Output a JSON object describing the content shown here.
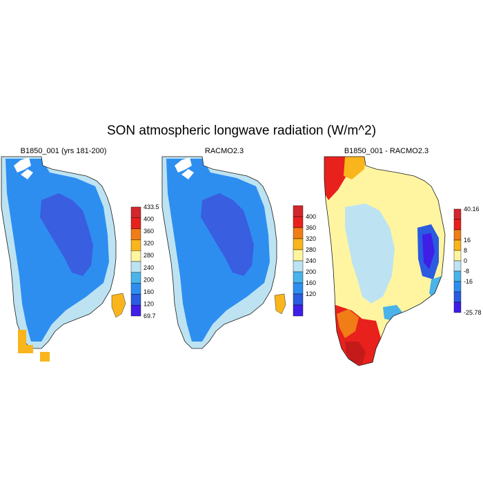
{
  "figure": {
    "title": "SON atmospheric longwave radiation (W/m^2)"
  },
  "chart_data": [
    {
      "type": "heatmap",
      "title": "B1850_001 (yrs 181-200)",
      "units": "W/m^2",
      "colorbar": {
        "labels": [
          "433.5",
          "400",
          "360",
          "320",
          "280",
          "240",
          "200",
          "160",
          "120",
          "69.7"
        ],
        "colors": [
          "#d2282d",
          "#e8211d",
          "#f07d16",
          "#f9b51b",
          "#fff5a0",
          "#bde3f2",
          "#4ab3ea",
          "#2d8ef0",
          "#2a5be0",
          "#3f1ee8"
        ]
      }
    },
    {
      "type": "heatmap",
      "title": "RACMO2.3",
      "units": "W/m^2",
      "colorbar": {
        "labels": [
          "400",
          "360",
          "320",
          "280",
          "240",
          "200",
          "160",
          "120"
        ],
        "colors": [
          "#d2282d",
          "#e8211d",
          "#f07d16",
          "#f9b51b",
          "#fff5a0",
          "#bde3f2",
          "#4ab3ea",
          "#2d8ef0",
          "#2a5be0",
          "#3f1ee8"
        ]
      }
    },
    {
      "type": "heatmap",
      "title": "B1850_001 - RACMO2.3",
      "units": "W/m^2",
      "colorbar": {
        "labels": [
          "40.16",
          "16",
          "8",
          "0",
          "-8",
          "-16",
          "-25.78"
        ],
        "colors": [
          "#d2282d",
          "#e8211d",
          "#f07d16",
          "#f9b51b",
          "#fff5a0",
          "#bde3f2",
          "#4ab3ea",
          "#2d8ef0",
          "#2a5be0",
          "#3f1ee8"
        ]
      }
    }
  ]
}
